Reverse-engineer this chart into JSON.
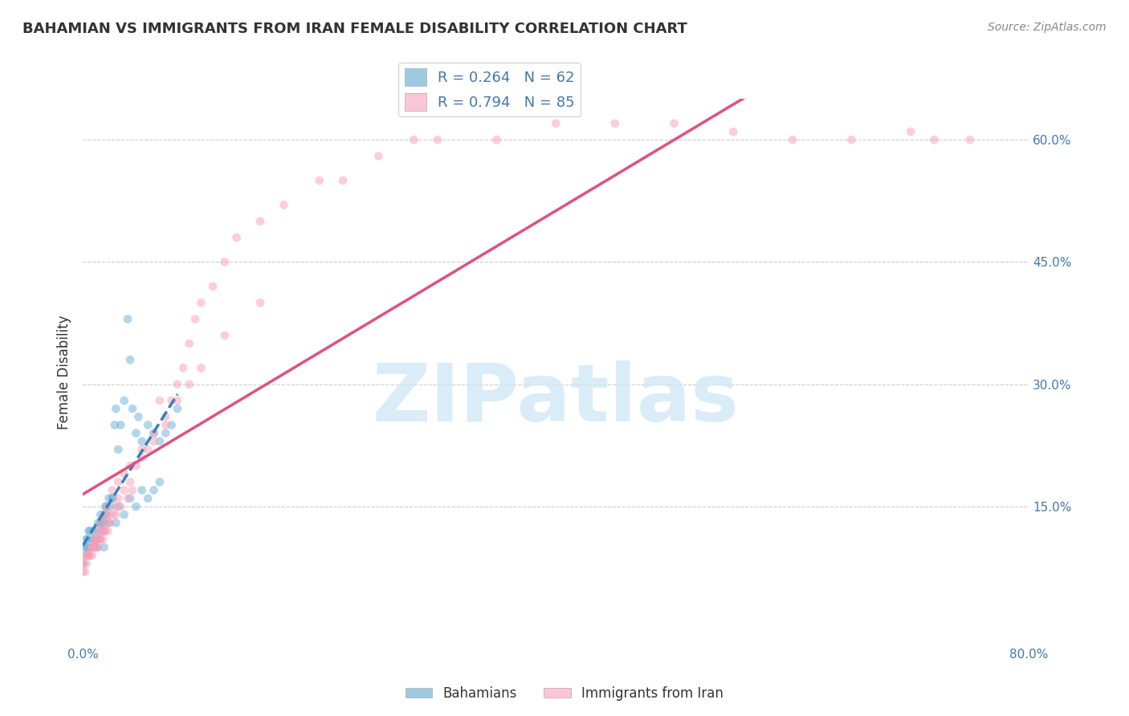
{
  "title": "BAHAMIAN VS IMMIGRANTS FROM IRAN FEMALE DISABILITY CORRELATION CHART",
  "source": "Source: ZipAtlas.com",
  "xlabel": "",
  "ylabel": "Female Disability",
  "xlim": [
    0.0,
    0.8
  ],
  "ylim": [
    -0.02,
    0.65
  ],
  "yticks_right": [
    0.15,
    0.3,
    0.45,
    0.6
  ],
  "ytick_labels_right": [
    "15.0%",
    "30.0%",
    "45.0%",
    "60.0%"
  ],
  "xticks": [
    0.0,
    0.1,
    0.2,
    0.3,
    0.4,
    0.5,
    0.6,
    0.7,
    0.8
  ],
  "xtick_labels": [
    "0.0%",
    "",
    "",
    "",
    "",
    "",
    "",
    "",
    "80.0%"
  ],
  "grid_color": "#cccccc",
  "background_color": "#ffffff",
  "watermark_text": "ZIPatlas",
  "watermark_color": "#d0e8f5",
  "series": [
    {
      "name": "Bahamians",
      "R": 0.264,
      "N": 62,
      "color": "#6baed6",
      "face_color": "#9ecae1",
      "scatter_color": "#6baed6",
      "trend_color": "#3182bd",
      "trend_style": "--",
      "x": [
        0.0,
        0.001,
        0.002,
        0.003,
        0.003,
        0.004,
        0.005,
        0.005,
        0.006,
        0.007,
        0.008,
        0.009,
        0.01,
        0.01,
        0.012,
        0.013,
        0.013,
        0.014,
        0.015,
        0.015,
        0.016,
        0.017,
        0.018,
        0.018,
        0.019,
        0.02,
        0.022,
        0.023,
        0.025,
        0.027,
        0.028,
        0.03,
        0.032,
        0.035,
        0.038,
        0.04,
        0.042,
        0.045,
        0.047,
        0.05,
        0.055,
        0.06,
        0.065,
        0.07,
        0.075,
        0.08,
        0.009,
        0.012,
        0.015,
        0.018,
        0.02,
        0.022,
        0.025,
        0.028,
        0.03,
        0.035,
        0.04,
        0.045,
        0.05,
        0.055,
        0.06,
        0.065
      ],
      "y": [
        0.08,
        0.09,
        0.1,
        0.1,
        0.11,
        0.11,
        0.1,
        0.12,
        0.12,
        0.1,
        0.11,
        0.12,
        0.1,
        0.11,
        0.1,
        0.12,
        0.13,
        0.11,
        0.13,
        0.14,
        0.13,
        0.12,
        0.13,
        0.1,
        0.15,
        0.14,
        0.16,
        0.15,
        0.16,
        0.25,
        0.27,
        0.22,
        0.25,
        0.28,
        0.38,
        0.33,
        0.27,
        0.24,
        0.26,
        0.23,
        0.25,
        0.24,
        0.23,
        0.24,
        0.25,
        0.27,
        0.1,
        0.11,
        0.13,
        0.14,
        0.15,
        0.13,
        0.16,
        0.13,
        0.15,
        0.14,
        0.16,
        0.15,
        0.17,
        0.16,
        0.17,
        0.18
      ]
    },
    {
      "name": "Immigrants from Iran",
      "R": 0.794,
      "N": 85,
      "color": "#fa9fb5",
      "face_color": "#fcc5d5",
      "scatter_color": "#fa9fb5",
      "trend_color": "#e05080",
      "trend_style": "-",
      "x": [
        0.0,
        0.001,
        0.002,
        0.003,
        0.004,
        0.005,
        0.006,
        0.007,
        0.008,
        0.009,
        0.01,
        0.011,
        0.012,
        0.013,
        0.014,
        0.015,
        0.016,
        0.017,
        0.018,
        0.019,
        0.02,
        0.021,
        0.022,
        0.023,
        0.025,
        0.027,
        0.028,
        0.03,
        0.032,
        0.035,
        0.038,
        0.04,
        0.042,
        0.045,
        0.05,
        0.055,
        0.06,
        0.065,
        0.07,
        0.075,
        0.08,
        0.085,
        0.09,
        0.095,
        0.1,
        0.11,
        0.12,
        0.13,
        0.15,
        0.17,
        0.2,
        0.22,
        0.25,
        0.28,
        0.3,
        0.35,
        0.4,
        0.45,
        0.5,
        0.55,
        0.6,
        0.65,
        0.7,
        0.72,
        0.75,
        0.003,
        0.005,
        0.008,
        0.01,
        0.013,
        0.015,
        0.018,
        0.02,
        0.025,
        0.03,
        0.035,
        0.04,
        0.05,
        0.06,
        0.07,
        0.08,
        0.09,
        0.1,
        0.12,
        0.15
      ],
      "y": [
        0.07,
        0.08,
        0.07,
        0.08,
        0.09,
        0.09,
        0.09,
        0.1,
        0.09,
        0.1,
        0.11,
        0.1,
        0.11,
        0.1,
        0.11,
        0.11,
        0.12,
        0.11,
        0.12,
        0.12,
        0.13,
        0.12,
        0.14,
        0.13,
        0.14,
        0.15,
        0.14,
        0.16,
        0.15,
        0.17,
        0.16,
        0.18,
        0.17,
        0.2,
        0.21,
        0.22,
        0.23,
        0.28,
        0.25,
        0.28,
        0.3,
        0.32,
        0.35,
        0.38,
        0.4,
        0.42,
        0.45,
        0.48,
        0.5,
        0.52,
        0.55,
        0.55,
        0.58,
        0.6,
        0.6,
        0.6,
        0.62,
        0.62,
        0.62,
        0.61,
        0.6,
        0.6,
        0.61,
        0.6,
        0.6,
        0.09,
        0.09,
        0.1,
        0.11,
        0.12,
        0.13,
        0.14,
        0.15,
        0.17,
        0.18,
        0.19,
        0.2,
        0.22,
        0.24,
        0.26,
        0.28,
        0.3,
        0.32,
        0.36,
        0.4
      ]
    }
  ],
  "legend": {
    "bahamian_label": "R = 0.264   N = 62",
    "iran_label": "R = 0.794   N = 85",
    "bahamian_color": "#9ecae1",
    "iran_color": "#fcc5d5"
  },
  "bottom_legend": {
    "labels": [
      "Bahamians",
      "Immigrants from Iran"
    ],
    "colors": [
      "#9ecae1",
      "#fcc5d5"
    ]
  }
}
